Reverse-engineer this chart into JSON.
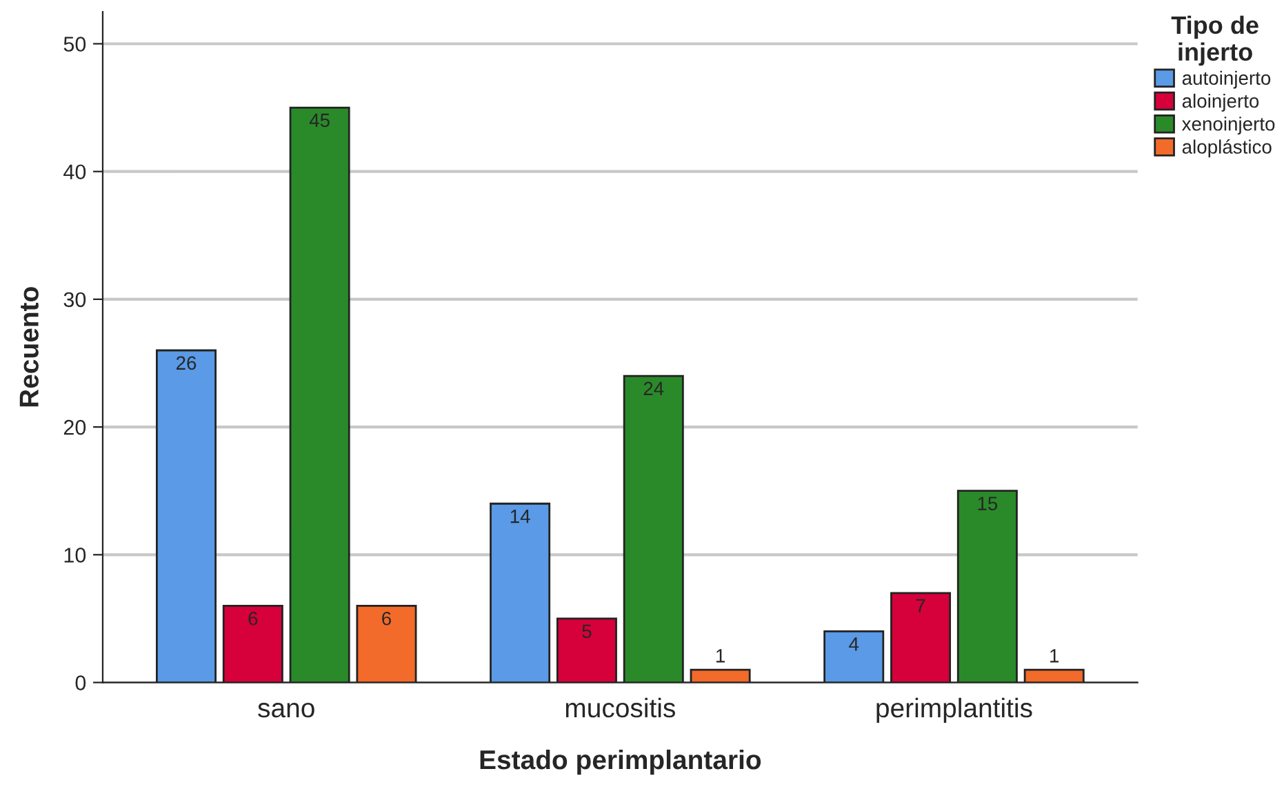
{
  "chart_data": {
    "type": "bar",
    "xlabel": "Estado perimplantario",
    "ylabel": "Recuento",
    "legend_title": "Tipo de\ninjerto",
    "categories": [
      "sano",
      "mucositis",
      "perimplantitis"
    ],
    "series": [
      {
        "name": "autoinjerto",
        "color": "#5a9ae6",
        "values": [
          26,
          14,
          4
        ]
      },
      {
        "name": "aloinjerto",
        "color": "#d6003a",
        "values": [
          6,
          5,
          7
        ]
      },
      {
        "name": "xenoinjerto",
        "color": "#2a8a2a",
        "values": [
          45,
          24,
          15
        ]
      },
      {
        "name": "aloplástico",
        "color": "#f26b2a",
        "values": [
          6,
          1,
          1
        ]
      }
    ],
    "ylim": [
      0,
      52.5
    ],
    "yticks": [
      0,
      10,
      20,
      30,
      40,
      50
    ],
    "grid": "y",
    "legend": "top right",
    "data_labels": true
  }
}
